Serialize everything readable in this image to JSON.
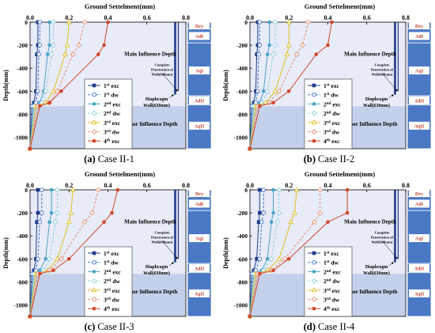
{
  "chart_data": [
    {
      "type": "line",
      "panel_label": "(a)",
      "title": "Case II-1",
      "xlabel": "Ground Settelment(mm)",
      "ylabel": "Depth(mm)",
      "xlim": [
        0,
        0.8
      ],
      "ylim": [
        -1100,
        0
      ],
      "xticks": [
        "0.0",
        "0.2",
        "0.4",
        "0.6",
        "0.8"
      ],
      "yticks": [
        "0",
        "-200",
        "-400",
        "-600",
        "-800",
        "-1000"
      ],
      "grid": false,
      "legend_position": "bottom-center",
      "series": [
        {
          "name": "exc",
          "sup": "st",
          "num": "1",
          "color": "#1f3c88",
          "dashed": false,
          "marker": "square",
          "x": [
            0.04,
            0.04,
            0.035,
            0.03,
            0.02,
            0.01,
            0.0
          ],
          "y": [
            0,
            -200,
            -280,
            -600,
            -700,
            -730,
            -1100
          ]
        },
        {
          "name": "dw",
          "sup": "st",
          "num": "1",
          "color": "#3f70c8",
          "dashed": true,
          "marker": "circle-open",
          "x": [
            0.05,
            0.05,
            0.045,
            0.04,
            0.03,
            0.01,
            0.0
          ],
          "y": [
            0,
            -200,
            -280,
            -600,
            -700,
            -730,
            -1100
          ]
        },
        {
          "name": "exc",
          "sup": "nd",
          "num": "2",
          "color": "#4aa3c8",
          "dashed": false,
          "marker": "circle",
          "x": [
            0.1,
            0.1,
            0.09,
            0.07,
            0.05,
            0.02,
            0.0
          ],
          "y": [
            0,
            -200,
            -280,
            -600,
            -700,
            -730,
            -1100
          ]
        },
        {
          "name": "dw",
          "sup": "nd",
          "num": "2",
          "color": "#8fd0e0",
          "dashed": true,
          "marker": "diamond-open",
          "x": [
            0.12,
            0.12,
            0.11,
            0.08,
            0.06,
            0.02,
            0.0
          ],
          "y": [
            0,
            -200,
            -280,
            -600,
            -700,
            -730,
            -1100
          ]
        },
        {
          "name": "exc",
          "sup": "rd",
          "num": "3",
          "color": "#e0c020",
          "dashed": false,
          "marker": "triangle-open",
          "x": [
            0.2,
            0.19,
            0.18,
            0.12,
            0.08,
            0.03,
            0.0
          ],
          "y": [
            0,
            -200,
            -280,
            -600,
            -700,
            -730,
            -1100
          ]
        },
        {
          "name": "dw",
          "sup": "rd",
          "num": "3",
          "color": "#e89070",
          "dashed": true,
          "marker": "diamond-open",
          "x": [
            0.28,
            0.25,
            0.22,
            0.14,
            0.1,
            0.04,
            0.0
          ],
          "y": [
            0,
            -200,
            -280,
            -600,
            -700,
            -730,
            -1100
          ]
        },
        {
          "name": "exc",
          "sup": "th",
          "num": "4",
          "color": "#d2462a",
          "dashed": false,
          "marker": "circle",
          "x": [
            0.4,
            0.38,
            0.35,
            0.16,
            0.1,
            0.05,
            0.0
          ],
          "y": [
            0,
            -200,
            -280,
            -600,
            -700,
            -730,
            -1100
          ]
        }
      ],
      "annotations": {
        "main": "Main Influence Depth",
        "minor": "Minor Influence Depth",
        "penetration": [
          "Complete",
          "Penetration of",
          "Wall(600mm)"
        ],
        "diaphragm": [
          "Diaphragm",
          "Wall(630mm)"
        ]
      },
      "wall_bottom": -630,
      "strata": [
        "Dry",
        "AdI",
        "AqI",
        "AdII",
        "AqII"
      ]
    },
    {
      "type": "line",
      "panel_label": "(b)",
      "title": "Case II-2",
      "xlabel": "Ground Settelment(mm)",
      "ylabel": "Depth(mm)",
      "xlim": [
        0,
        0.8
      ],
      "ylim": [
        -1100,
        0
      ],
      "xticks": [
        "0.0",
        "0.2",
        "0.4",
        "0.6",
        "0.8"
      ],
      "yticks": [
        "0",
        "-200",
        "-400",
        "-600",
        "-800",
        "-1000"
      ],
      "grid": false,
      "legend_position": "bottom-center",
      "series": [
        {
          "name": "exc",
          "sup": "st",
          "num": "1",
          "color": "#1f3c88",
          "dashed": false,
          "marker": "square",
          "x": [
            0.04,
            0.04,
            0.035,
            0.03,
            0.02,
            0.01,
            0.0
          ],
          "y": [
            0,
            -200,
            -280,
            -600,
            -700,
            -730,
            -1100
          ]
        },
        {
          "name": "dw",
          "sup": "st",
          "num": "1",
          "color": "#3f70c8",
          "dashed": true,
          "marker": "circle-open",
          "x": [
            0.05,
            0.05,
            0.045,
            0.04,
            0.03,
            0.01,
            0.0
          ],
          "y": [
            0,
            -200,
            -280,
            -600,
            -700,
            -730,
            -1100
          ]
        },
        {
          "name": "exc",
          "sup": "nd",
          "num": "2",
          "color": "#4aa3c8",
          "dashed": false,
          "marker": "circle",
          "x": [
            0.1,
            0.1,
            0.09,
            0.07,
            0.05,
            0.02,
            0.0
          ],
          "y": [
            0,
            -200,
            -280,
            -600,
            -700,
            -730,
            -1100
          ]
        },
        {
          "name": "dw",
          "sup": "nd",
          "num": "2",
          "color": "#8fd0e0",
          "dashed": true,
          "marker": "diamond-open",
          "x": [
            0.13,
            0.13,
            0.12,
            0.09,
            0.06,
            0.02,
            0.0
          ],
          "y": [
            0,
            -200,
            -280,
            -600,
            -700,
            -730,
            -1100
          ]
        },
        {
          "name": "exc",
          "sup": "rd",
          "num": "3",
          "color": "#e0c020",
          "dashed": false,
          "marker": "triangle-open",
          "x": [
            0.2,
            0.2,
            0.19,
            0.13,
            0.08,
            0.03,
            0.0
          ],
          "y": [
            0,
            -200,
            -280,
            -600,
            -700,
            -730,
            -1100
          ]
        },
        {
          "name": "dw",
          "sup": "rd",
          "num": "3",
          "color": "#e89070",
          "dashed": true,
          "marker": "diamond-open",
          "x": [
            0.3,
            0.27,
            0.24,
            0.15,
            0.1,
            0.04,
            0.0
          ],
          "y": [
            0,
            -200,
            -280,
            -600,
            -700,
            -730,
            -1100
          ]
        },
        {
          "name": "exc",
          "sup": "th",
          "num": "4",
          "color": "#d2462a",
          "dashed": false,
          "marker": "circle",
          "x": [
            0.42,
            0.4,
            0.34,
            0.2,
            0.12,
            0.05,
            0.0
          ],
          "y": [
            0,
            -200,
            -280,
            -600,
            -700,
            -730,
            -1100
          ]
        }
      ],
      "annotations": {
        "main": "Main Influence Depth",
        "minor": "Minor Influence Depth",
        "penetration": [
          "Complete",
          "Penetration of",
          "Wall(600mm)"
        ],
        "diaphragm": [
          "Diaphragm",
          "Wall(630mm)"
        ]
      },
      "wall_bottom": -630,
      "strata": [
        "Dry",
        "AdI",
        "AqI",
        "AdII",
        "AqII"
      ]
    },
    {
      "type": "line",
      "panel_label": "(c)",
      "title": "Case II-3",
      "xlabel": "Ground Settelment(mm)",
      "ylabel": "Depth(mm)",
      "xlim": [
        0,
        0.8
      ],
      "ylim": [
        -1100,
        0
      ],
      "xticks": [
        "0.0",
        "0.2",
        "0.4",
        "0.6",
        "0.8"
      ],
      "yticks": [
        "0",
        "-200",
        "-400",
        "-600",
        "-800",
        "-1000"
      ],
      "grid": false,
      "legend_position": "bottom-center",
      "series": [
        {
          "name": "exc",
          "sup": "st",
          "num": "1",
          "color": "#1f3c88",
          "dashed": false,
          "marker": "square",
          "x": [
            0.04,
            0.04,
            0.035,
            0.03,
            0.02,
            0.01,
            0.0
          ],
          "y": [
            0,
            -200,
            -280,
            -600,
            -700,
            -730,
            -1100
          ]
        },
        {
          "name": "dw",
          "sup": "st",
          "num": "1",
          "color": "#3f70c8",
          "dashed": true,
          "marker": "circle-open",
          "x": [
            0.06,
            0.06,
            0.05,
            0.04,
            0.03,
            0.01,
            0.0
          ],
          "y": [
            0,
            -200,
            -280,
            -600,
            -700,
            -730,
            -1100
          ]
        },
        {
          "name": "exc",
          "sup": "nd",
          "num": "2",
          "color": "#4aa3c8",
          "dashed": false,
          "marker": "circle",
          "x": [
            0.11,
            0.11,
            0.1,
            0.08,
            0.05,
            0.02,
            0.0
          ],
          "y": [
            0,
            -200,
            -280,
            -600,
            -700,
            -730,
            -1100
          ]
        },
        {
          "name": "dw",
          "sup": "nd",
          "num": "2",
          "color": "#8fd0e0",
          "dashed": true,
          "marker": "diamond-open",
          "x": [
            0.14,
            0.14,
            0.13,
            0.1,
            0.07,
            0.02,
            0.0
          ],
          "y": [
            0,
            -200,
            -280,
            -600,
            -700,
            -730,
            -1100
          ]
        },
        {
          "name": "exc",
          "sup": "rd",
          "num": "3",
          "color": "#e0c020",
          "dashed": false,
          "marker": "triangle-open",
          "x": [
            0.22,
            0.21,
            0.2,
            0.14,
            0.09,
            0.03,
            0.0
          ],
          "y": [
            0,
            -200,
            -280,
            -600,
            -700,
            -730,
            -1100
          ]
        },
        {
          "name": "dw",
          "sup": "rd",
          "num": "3",
          "color": "#e89070",
          "dashed": true,
          "marker": "diamond-open",
          "x": [
            0.35,
            0.32,
            0.28,
            0.16,
            0.1,
            0.04,
            0.0
          ],
          "y": [
            0,
            -200,
            -280,
            -600,
            -700,
            -730,
            -1100
          ]
        },
        {
          "name": "exc",
          "sup": "th",
          "num": "4",
          "color": "#d2462a",
          "dashed": false,
          "marker": "circle",
          "x": [
            0.45,
            0.42,
            0.38,
            0.2,
            0.12,
            0.05,
            0.0
          ],
          "y": [
            0,
            -200,
            -280,
            -600,
            -700,
            -730,
            -1100
          ]
        }
      ],
      "annotations": {
        "main": "Main Influence Depth",
        "minor": "Minor Influence Depth",
        "penetration": [
          "Complete",
          "Penetration of",
          "Wall(600mm)"
        ],
        "diaphragm": [
          "Diaphragm",
          "Wall(630mm)"
        ]
      },
      "wall_bottom": -630,
      "strata": [
        "Dry",
        "AdI",
        "AqI",
        "AdII",
        "AqII"
      ]
    },
    {
      "type": "line",
      "panel_label": "(d)",
      "title": "Case II-4",
      "xlabel": "Ground Settelment(mm)",
      "ylabel": "Depth(mm)",
      "xlim": [
        0,
        0.8
      ],
      "ylim": [
        -1100,
        0
      ],
      "xticks": [
        "0.0",
        "0.2",
        "0.4",
        "0.6",
        "0.8"
      ],
      "yticks": [
        "0",
        "-200",
        "-400",
        "-600",
        "-800",
        "-1000"
      ],
      "grid": false,
      "legend_position": "bottom-center",
      "series": [
        {
          "name": "exc",
          "sup": "st",
          "num": "1",
          "color": "#1f3c88",
          "dashed": false,
          "marker": "square",
          "x": [
            0.05,
            0.05,
            0.045,
            0.035,
            0.02,
            0.01,
            0.0
          ],
          "y": [
            0,
            -200,
            -280,
            -600,
            -700,
            -730,
            -1100
          ]
        },
        {
          "name": "dw",
          "sup": "st",
          "num": "1",
          "color": "#3f70c8",
          "dashed": true,
          "marker": "circle-open",
          "x": [
            0.07,
            0.07,
            0.06,
            0.05,
            0.03,
            0.01,
            0.0
          ],
          "y": [
            0,
            -200,
            -280,
            -600,
            -700,
            -730,
            -1100
          ]
        },
        {
          "name": "exc",
          "sup": "nd",
          "num": "2",
          "color": "#4aa3c8",
          "dashed": false,
          "marker": "circle",
          "x": [
            0.12,
            0.12,
            0.11,
            0.09,
            0.06,
            0.02,
            0.0
          ],
          "y": [
            0,
            -200,
            -280,
            -600,
            -700,
            -730,
            -1100
          ]
        },
        {
          "name": "dw",
          "sup": "nd",
          "num": "2",
          "color": "#8fd0e0",
          "dashed": true,
          "marker": "diamond-open",
          "x": [
            0.15,
            0.15,
            0.14,
            0.11,
            0.07,
            0.02,
            0.0
          ],
          "y": [
            0,
            -200,
            -280,
            -600,
            -700,
            -730,
            -1100
          ]
        },
        {
          "name": "exc",
          "sup": "rd",
          "num": "3",
          "color": "#e0c020",
          "dashed": false,
          "marker": "triangle-open",
          "x": [
            0.24,
            0.23,
            0.21,
            0.15,
            0.09,
            0.03,
            0.0
          ],
          "y": [
            0,
            -200,
            -280,
            -600,
            -700,
            -730,
            -1100
          ]
        },
        {
          "name": "dw",
          "sup": "rd",
          "num": "3",
          "color": "#e89070",
          "dashed": true,
          "marker": "diamond-open",
          "x": [
            0.36,
            0.36,
            0.33,
            0.18,
            0.11,
            0.04,
            0.0
          ],
          "y": [
            0,
            -200,
            -280,
            -600,
            -700,
            -730,
            -1100
          ]
        },
        {
          "name": "exc",
          "sup": "th",
          "num": "4",
          "color": "#d2462a",
          "dashed": false,
          "marker": "circle",
          "x": [
            0.5,
            0.5,
            0.4,
            0.2,
            0.12,
            0.05,
            0.0
          ],
          "y": [
            0,
            -200,
            -280,
            -600,
            -700,
            -730,
            -1100
          ]
        }
      ],
      "annotations": {
        "main": "Main Influence Depth",
        "minor": "Minor Influence Depth",
        "penetration": [
          "Complete",
          "Penetration of",
          "Wall(600mm)"
        ],
        "diaphragm": [
          "Diaphragm",
          "Wall(630mm)"
        ]
      },
      "wall_bottom": -630,
      "strata": [
        "Dry",
        "AdI",
        "AqI",
        "AdII",
        "AqII"
      ]
    }
  ],
  "colors": {
    "main_zone": "#e8ebf8",
    "minor_zone": "#c4d0ea",
    "strata_fill": "#4a78c4",
    "strata_label_bg": "#ffffff",
    "strata_text": "#c0392b",
    "wall": "#1f3c88"
  }
}
